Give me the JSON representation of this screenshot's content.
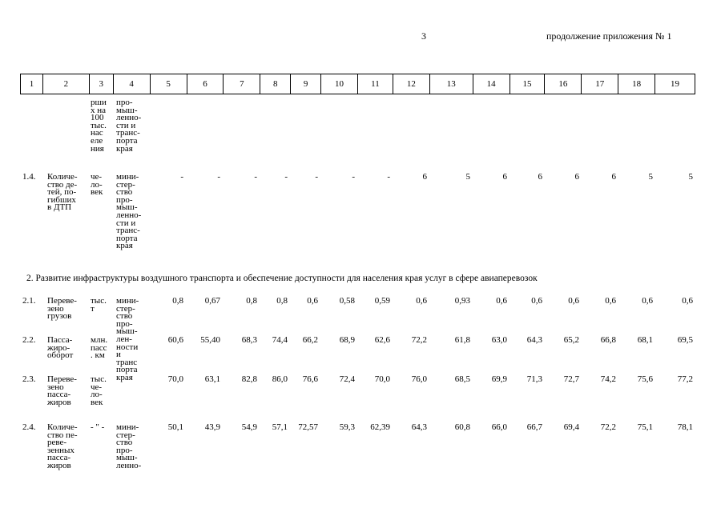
{
  "page_number": "3",
  "continuation": "продолжение приложения № 1",
  "header_columns": [
    "1",
    "2",
    "3",
    "4",
    "5",
    "6",
    "7",
    "8",
    "9",
    "10",
    "11",
    "12",
    "13",
    "14",
    "15",
    "16",
    "17",
    "18",
    "19"
  ],
  "rows": [
    {
      "id": "",
      "name": "",
      "unit": "рши\nх на\n100\nтыс.\nнас\nеле\nния",
      "resp": "про-\nмыш-\nленно-\nсти и\nтранс-\nпорта\nкрая",
      "values": []
    },
    {
      "id": "1.4.",
      "name": "Количе-\nство де-\nтей, по-\nгибших\nв ДТП",
      "unit": "че-\nло-\nвек",
      "resp": "мини-\nстер-\nство\nпро-\nмыш-\nленно-\nсти и\nтранс-\nпорта\nкрая",
      "values": [
        "-",
        "-",
        "-",
        "-",
        "-",
        "-",
        "-",
        "6",
        "5",
        "6",
        "6",
        "6",
        "6",
        "5",
        "5"
      ]
    },
    {
      "id": "2.1.",
      "name": "Переве-\nзено\nгрузов",
      "unit": "тыс.\nт",
      "resp": "мини-\nстер-\nство\nпро-\nмыш-\nлен-\nности\nи\nтранс\nпорта\nкрая",
      "values": [
        "0,8",
        "0,67",
        "0,8",
        "0,8",
        "0,6",
        "0,58",
        "0,59",
        "0,6",
        "0,93",
        "0,6",
        "0,6",
        "0,6",
        "0,6",
        "0,6",
        "0,6"
      ]
    },
    {
      "id": "2.2.",
      "name": "Пасса-\nжиро-\nоборот",
      "unit": "млн.\nпасс\n. км",
      "resp": "",
      "values": [
        "60,6",
        "55,40",
        "68,3",
        "74,4",
        "66,2",
        "68,9",
        "62,6",
        "72,2",
        "61,8",
        "63,0",
        "64,3",
        "65,2",
        "66,8",
        "68,1",
        "69,5"
      ]
    },
    {
      "id": "2.3.",
      "name": "Переве-\nзено\nпасса-\nжиров",
      "unit": "тыс.\nче-\nло-\nвек",
      "resp": "",
      "values": [
        "70,0",
        "63,1",
        "82,8",
        "86,0",
        "76,6",
        "72,4",
        "70,0",
        "76,0",
        "68,5",
        "69,9",
        "71,3",
        "72,7",
        "74,2",
        "75,6",
        "77,2"
      ]
    },
    {
      "id": "2.4.",
      "name": "Количе-\nство пе-\nреве-\nзенных\nпасса-\nжиров",
      "unit": "- \" -",
      "resp": "мини-\nстер-\nство\nпро-\nмыш-\nленно-",
      "values": [
        "50,1",
        "43,9",
        "54,9",
        "57,1",
        "72,57",
        "59,3",
        "62,39",
        "64,3",
        "60,8",
        "66,0",
        "66,7",
        "69,4",
        "72,2",
        "75,1",
        "78,1"
      ]
    }
  ],
  "section_2": "2.   Развитие инфраструктуры воздушного транспорта и обеспечение доступности для населения края услуг в сфере авиаперевозок"
}
